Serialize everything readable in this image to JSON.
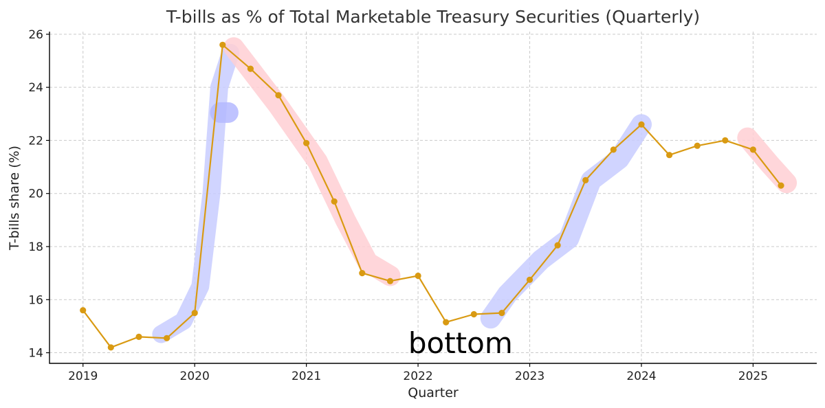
{
  "chart_data": {
    "type": "line",
    "title": "T-bills as % of Total Marketable Treasury Securities (Quarterly)",
    "xlabel": "Quarter",
    "ylabel": "T-bills share (%)",
    "xlim": [
      2018.7,
      2025.57
    ],
    "ylim": [
      13.6,
      26.1
    ],
    "xticks": [
      2019,
      2020,
      2021,
      2022,
      2023,
      2024,
      2025
    ],
    "xtick_labels": [
      "2019",
      "2020",
      "2021",
      "2022",
      "2023",
      "2024",
      "2025"
    ],
    "yticks": [
      14,
      16,
      18,
      20,
      22,
      24,
      26
    ],
    "ytick_labels": [
      "14",
      "16",
      "18",
      "20",
      "22",
      "24",
      "26"
    ],
    "grid": true,
    "series": [
      {
        "color": "#d99a12",
        "points": [
          {
            "x": 2019.0,
            "y": 15.6
          },
          {
            "x": 2019.25,
            "y": 14.2
          },
          {
            "x": 2019.5,
            "y": 14.6
          },
          {
            "x": 2019.75,
            "y": 14.55
          },
          {
            "x": 2020.0,
            "y": 15.5
          },
          {
            "x": 2020.25,
            "y": 25.6
          },
          {
            "x": 2020.5,
            "y": 24.7
          },
          {
            "x": 2020.75,
            "y": 23.7
          },
          {
            "x": 2021.0,
            "y": 21.9
          },
          {
            "x": 2021.25,
            "y": 19.7
          },
          {
            "x": 2021.5,
            "y": 17.0
          },
          {
            "x": 2021.75,
            "y": 16.7
          },
          {
            "x": 2022.0,
            "y": 16.9
          },
          {
            "x": 2022.25,
            "y": 15.15
          },
          {
            "x": 2022.5,
            "y": 15.45
          },
          {
            "x": 2022.75,
            "y": 15.5
          },
          {
            "x": 2023.0,
            "y": 16.75
          },
          {
            "x": 2023.25,
            "y": 18.05
          },
          {
            "x": 2023.5,
            "y": 20.5
          },
          {
            "x": 2023.75,
            "y": 21.65
          },
          {
            "x": 2024.0,
            "y": 22.6
          },
          {
            "x": 2024.25,
            "y": 21.45
          },
          {
            "x": 2024.5,
            "y": 21.8
          },
          {
            "x": 2024.75,
            "y": 22.0
          },
          {
            "x": 2025.0,
            "y": 21.65
          },
          {
            "x": 2025.25,
            "y": 20.3
          }
        ]
      }
    ],
    "highlights": [
      {
        "color": "#c8ccff",
        "width": 26,
        "points": [
          [
            2019.7,
            14.7
          ],
          [
            2019.9,
            15.2
          ],
          [
            2020.05,
            16.5
          ],
          [
            2020.15,
            20.0
          ],
          [
            2020.22,
            24.0
          ],
          [
            2020.32,
            25.3
          ]
        ]
      },
      {
        "color": "#b4b8ff",
        "width": 30,
        "points": [
          [
            2020.23,
            23.05
          ],
          [
            2020.3,
            23.05
          ]
        ]
      },
      {
        "color": "#ffcfd4",
        "width": 30,
        "points": [
          [
            2020.35,
            25.5
          ],
          [
            2020.75,
            23.3
          ],
          [
            2021.1,
            21.2
          ],
          [
            2021.35,
            19.0
          ],
          [
            2021.55,
            17.4
          ],
          [
            2021.75,
            16.9
          ]
        ]
      },
      {
        "color": "#c8ccff",
        "width": 30,
        "points": [
          [
            2022.65,
            15.3
          ],
          [
            2022.8,
            16.2
          ],
          [
            2023.1,
            17.5
          ],
          [
            2023.35,
            18.3
          ],
          [
            2023.55,
            20.5
          ],
          [
            2023.8,
            21.3
          ],
          [
            2024.0,
            22.6
          ]
        ]
      },
      {
        "color": "#ffcfd4",
        "width": 30,
        "points": [
          [
            2024.95,
            22.1
          ],
          [
            2025.15,
            21.1
          ],
          [
            2025.3,
            20.4
          ]
        ]
      }
    ],
    "annotations": [
      {
        "text": "bottom",
        "x": 2022.38,
        "y": 14.35
      }
    ]
  }
}
